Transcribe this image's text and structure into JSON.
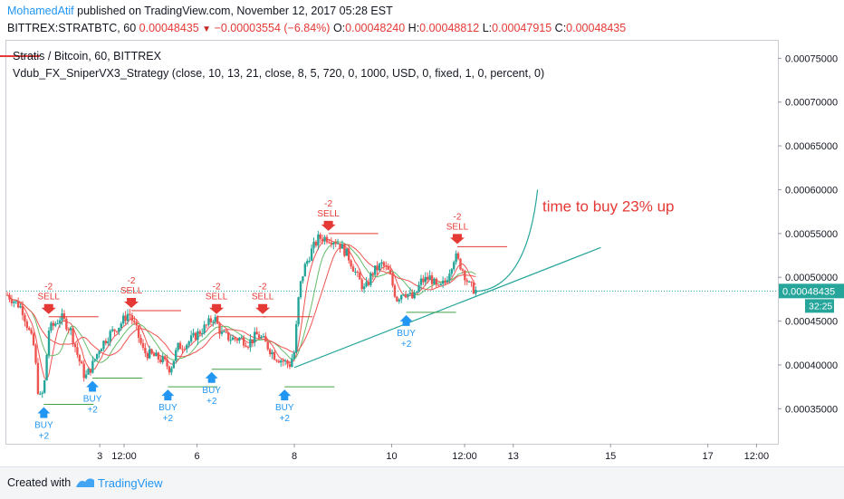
{
  "header": {
    "author": "MohamedAtif",
    "published": "published on TradingView.com, November 12, 2017 05:28 EST",
    "symbol": "BITTREX:STRATBTC, 60",
    "last": "0.00048435",
    "change": "−0.00003554 (−6.84%)",
    "o_label": "O:",
    "o": "0.00048240",
    "h_label": "H:",
    "h": "0.00048812",
    "l_label": "L:",
    "l": "0.00047915",
    "c_label": "C:",
    "c": "0.00048435"
  },
  "legend": {
    "title": "Stratis / Bitcoin, 60, BITTREX",
    "strategy": "Vdub_FX_SniperVX3_Strategy (close, 10, 13, 21, close, 8, 5, 720, 0, 1000, USD, 0, fixed, 1, 0, percent, 0)"
  },
  "footer": {
    "created": "Created with",
    "brand": "TradingView"
  },
  "colors": {
    "up": "#26a69a",
    "down": "#ef5350",
    "sell": "#e53935",
    "buy": "#2196f3",
    "trend": "#26a69a",
    "price_tag": "#26a69a",
    "ribbon_up": "#66bb6a",
    "ribbon_down": "#ef5350"
  },
  "chart_data": {
    "type": "candlestick",
    "y_axis": {
      "ticks": [
        "0.00075000",
        "0.00070000",
        "0.00065000",
        "0.00060000",
        "0.00055000",
        "0.00050000",
        "0.00045000",
        "0.00040000",
        "0.00035000"
      ],
      "ylim": [
        0.00031,
        0.00077
      ]
    },
    "x_axis": {
      "ticks": [
        {
          "label": "3",
          "t": 3
        },
        {
          "label": "12:00",
          "t": 3.5
        },
        {
          "label": "6",
          "t": 5
        },
        {
          "label": "8",
          "t": 7
        },
        {
          "label": "10",
          "t": 9
        },
        {
          "label": "12:00",
          "t": 10.5
        },
        {
          "label": "13",
          "t": 11.5
        },
        {
          "label": "15",
          "t": 13.5
        },
        {
          "label": "17",
          "t": 15.5
        },
        {
          "label": "12:00",
          "t": 16.5
        }
      ],
      "xlim": [
        1.08,
        16.94
      ]
    },
    "current_price": {
      "label": "0.00048435",
      "value": 0.00048435,
      "countdown": "32:25"
    },
    "series": [
      {
        "values": [
          [
            1.1,
            0.00048
          ],
          [
            1.4,
            0.000465
          ],
          [
            1.65,
            0.00042
          ],
          [
            1.75,
            0.00036
          ],
          [
            1.85,
            0.00037
          ],
          [
            1.95,
            0.00044
          ],
          [
            2.05,
            0.000445
          ],
          [
            2.2,
            0.000455
          ],
          [
            2.4,
            0.00044
          ],
          [
            2.55,
            0.00041
          ],
          [
            2.7,
            0.000385
          ],
          [
            2.85,
            0.0004
          ],
          [
            3.0,
            0.00042
          ],
          [
            3.2,
            0.000435
          ],
          [
            3.4,
            0.000445
          ],
          [
            3.6,
            0.00046
          ],
          [
            3.75,
            0.00044
          ],
          [
            3.9,
            0.000415
          ],
          [
            4.1,
            0.00041
          ],
          [
            4.3,
            0.000405
          ],
          [
            4.45,
            0.000395
          ],
          [
            4.6,
            0.00042
          ],
          [
            4.8,
            0.000425
          ],
          [
            5.0,
            0.000435
          ],
          [
            5.2,
            0.000445
          ],
          [
            5.35,
            0.000455
          ],
          [
            5.5,
            0.000435
          ],
          [
            5.7,
            0.00043
          ],
          [
            5.9,
            0.00043
          ],
          [
            6.05,
            0.000425
          ],
          [
            6.25,
            0.000435
          ],
          [
            6.4,
            0.000425
          ],
          [
            6.6,
            0.00041
          ],
          [
            6.75,
            0.000405
          ],
          [
            6.9,
            0.0004
          ],
          [
            7.0,
            0.000415
          ],
          [
            7.1,
            0.000485
          ],
          [
            7.2,
            0.00051
          ],
          [
            7.35,
            0.00053
          ],
          [
            7.5,
            0.000545
          ],
          [
            7.7,
            0.000545
          ],
          [
            7.9,
            0.00054
          ],
          [
            8.1,
            0.000525
          ],
          [
            8.3,
            0.0005
          ],
          [
            8.45,
            0.000485
          ],
          [
            8.6,
            0.000505
          ],
          [
            8.8,
            0.000515
          ],
          [
            8.95,
            0.000505
          ],
          [
            9.1,
            0.000475
          ],
          [
            9.25,
            0.000485
          ],
          [
            9.45,
            0.000475
          ],
          [
            9.6,
            0.000495
          ],
          [
            9.8,
            0.0005
          ],
          [
            9.95,
            0.000485
          ],
          [
            10.1,
            0.000495
          ],
          [
            10.3,
            0.000525
          ],
          [
            10.45,
            0.00051
          ],
          [
            10.6,
            0.00049
          ],
          [
            10.75,
            0.000484
          ]
        ]
      }
    ],
    "signals": [
      {
        "type": "sell",
        "label": "SELL",
        "qty": "-2",
        "t": 1.95,
        "price": 0.000455
      },
      {
        "type": "sell",
        "label": "SELL",
        "qty": "-2",
        "t": 3.65,
        "price": 0.000462
      },
      {
        "type": "sell",
        "label": "SELL",
        "qty": "-2",
        "t": 5.4,
        "price": 0.000455
      },
      {
        "type": "sell",
        "label": "SELL",
        "qty": "-2",
        "t": 6.35,
        "price": 0.000455
      },
      {
        "type": "sell",
        "label": "SELL",
        "qty": "-2",
        "t": 7.7,
        "price": 0.00055
      },
      {
        "type": "sell",
        "label": "SELL",
        "qty": "-2",
        "t": 10.35,
        "price": 0.000535
      },
      {
        "type": "buy",
        "label": "BUY",
        "qty": "+2",
        "t": 1.85,
        "price": 0.000355
      },
      {
        "type": "buy",
        "label": "BUY",
        "qty": "+2",
        "t": 2.85,
        "price": 0.000385
      },
      {
        "type": "buy",
        "label": "BUY",
        "qty": "+2",
        "t": 4.4,
        "price": 0.000375
      },
      {
        "type": "buy",
        "label": "BUY",
        "qty": "+2",
        "t": 5.3,
        "price": 0.000395
      },
      {
        "type": "buy",
        "label": "BUY",
        "qty": "+2",
        "t": 6.8,
        "price": 0.000375
      },
      {
        "type": "buy",
        "label": "BUY",
        "qty": "+2",
        "t": 9.3,
        "price": 0.00046
      }
    ],
    "drawings": {
      "trend_line": [
        [
          7.0,
          0.000397
        ],
        [
          13.3,
          0.000534
        ]
      ],
      "projection_curve": [
        [
          10.75,
          0.000484
        ],
        [
          12.0,
          0.0006
        ]
      ],
      "annotation": {
        "text": "time to buy 23% up",
        "t": 12.1,
        "price": 0.000575
      }
    }
  }
}
